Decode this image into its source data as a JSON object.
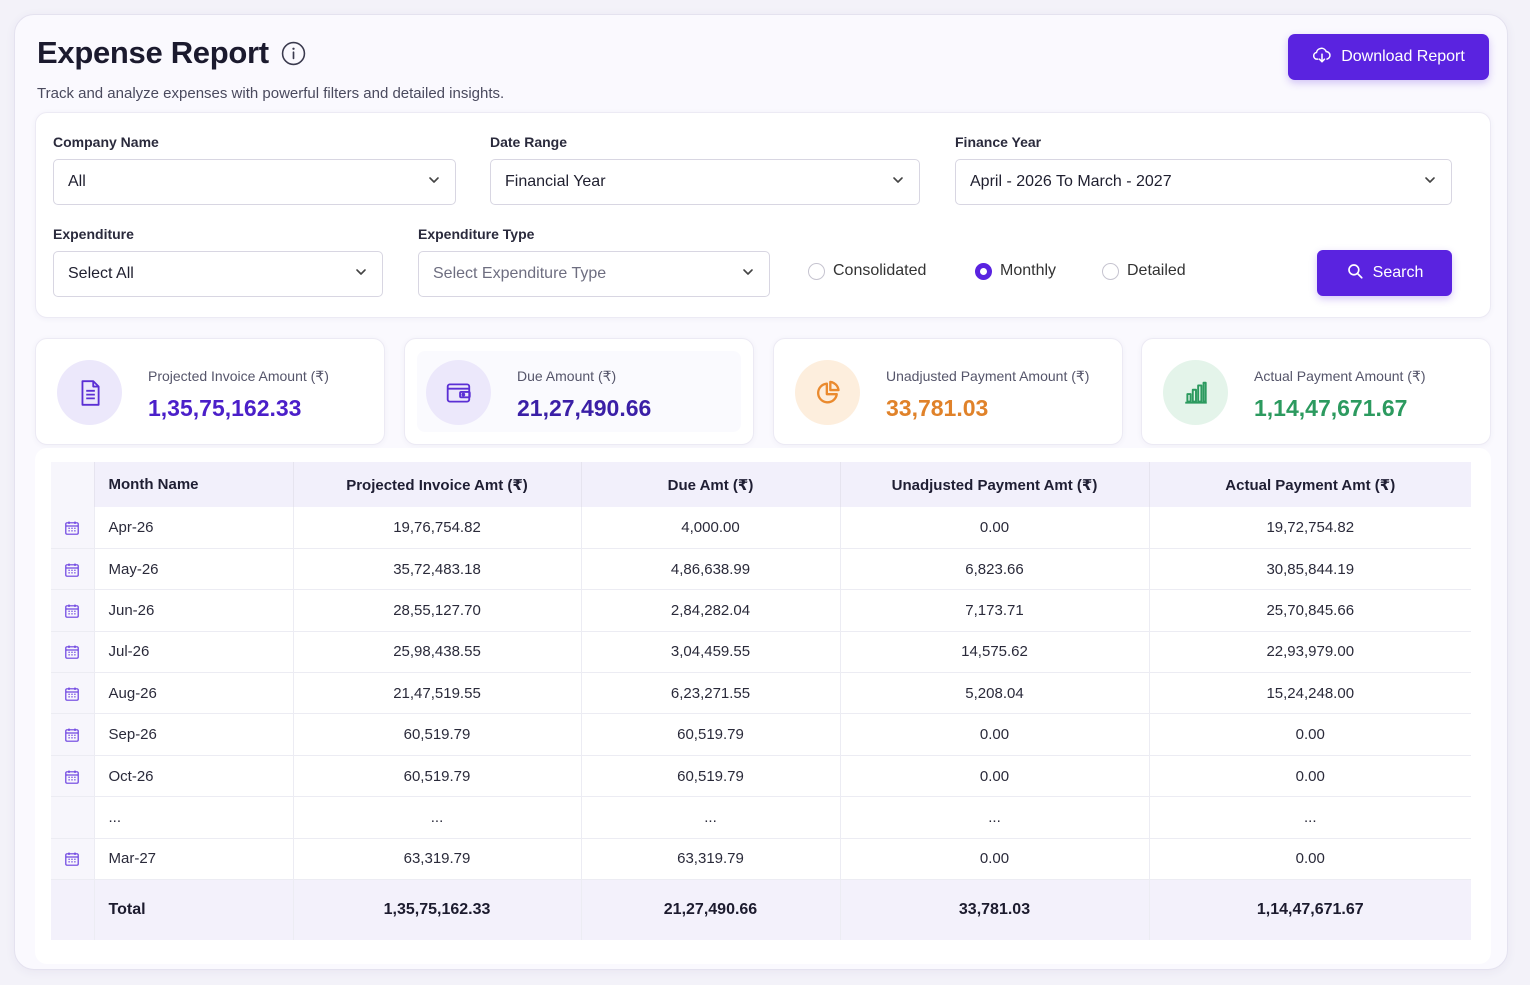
{
  "header": {
    "title": "Expense Report",
    "subtitle": "Track and analyze expenses with powerful filters and detailed insights.",
    "download_label": "Download Report"
  },
  "filters": {
    "company_label": "Company Name",
    "company_value": "All",
    "date_range_label": "Date Range",
    "date_range_value": "Financial Year",
    "finance_year_label": "Finance Year",
    "finance_year_value": "April - 2026 To March - 2027",
    "expenditure_label": "Expenditure",
    "expenditure_value": "Select All",
    "expenditure_type_label": "Expenditure Type",
    "expenditure_type_placeholder": "Select Expenditure Type",
    "view_options": [
      {
        "label": "Consolidated",
        "selected": false
      },
      {
        "label": "Monthly",
        "selected": true
      },
      {
        "label": "Detailed",
        "selected": false
      }
    ],
    "search_label": "Search"
  },
  "stats": [
    {
      "label": "Projected Invoice Amount (₹)",
      "value": "1,35,75,162.33",
      "color": "#4b1fc9",
      "bg": "#ece8fb",
      "icon": "document-icon"
    },
    {
      "label": "Due Amount (₹)",
      "value": "21,27,490.66",
      "color": "#3a1fa6",
      "bg": "#ece8fb",
      "icon": "wallet-icon"
    },
    {
      "label": "Unadjusted Payment Amount (₹)",
      "value": "33,781.03",
      "color": "#e0822a",
      "bg": "#fdeedd",
      "icon": "pie-chart-icon"
    },
    {
      "label": "Actual Payment Amount (₹)",
      "value": "1,14,47,671.67",
      "color": "#2c9a5f",
      "bg": "#e4f4ea",
      "icon": "bar-chart-icon"
    }
  ],
  "table": {
    "columns": [
      "Month Name",
      "Projected Invoice Amt (₹)",
      "Due Amt (₹)",
      "Unadjusted Payment Amt (₹)",
      "Actual Payment Amt (₹)"
    ],
    "rows": [
      [
        "Apr-26",
        "19,76,754.82",
        "4,000.00",
        "0.00",
        "19,72,754.82"
      ],
      [
        "May-26",
        "35,72,483.18",
        "4,86,638.99",
        "6,823.66",
        "30,85,844.19"
      ],
      [
        "Jun-26",
        "28,55,127.70",
        "2,84,282.04",
        "7,173.71",
        "25,70,845.66"
      ],
      [
        "Jul-26",
        "25,98,438.55",
        "3,04,459.55",
        "14,575.62",
        "22,93,979.00"
      ],
      [
        "Aug-26",
        "21,47,519.55",
        "6,23,271.55",
        "5,208.04",
        "15,24,248.00"
      ],
      [
        "Sep-26",
        "60,519.79",
        "60,519.79",
        "0.00",
        "0.00"
      ],
      [
        "Oct-26",
        "60,519.79",
        "60,519.79",
        "0.00",
        "0.00"
      ],
      [
        "...",
        "...",
        "...",
        "...",
        "..."
      ],
      [
        "Mar-27",
        "63,319.79",
        "63,319.79",
        "0.00",
        "0.00"
      ]
    ],
    "total": [
      "Total",
      "1,35,75,162.33",
      "21,27,490.66",
      "33,781.03",
      "1,14,47,671.67"
    ]
  },
  "colors": {
    "accent": "#5a23e0"
  }
}
